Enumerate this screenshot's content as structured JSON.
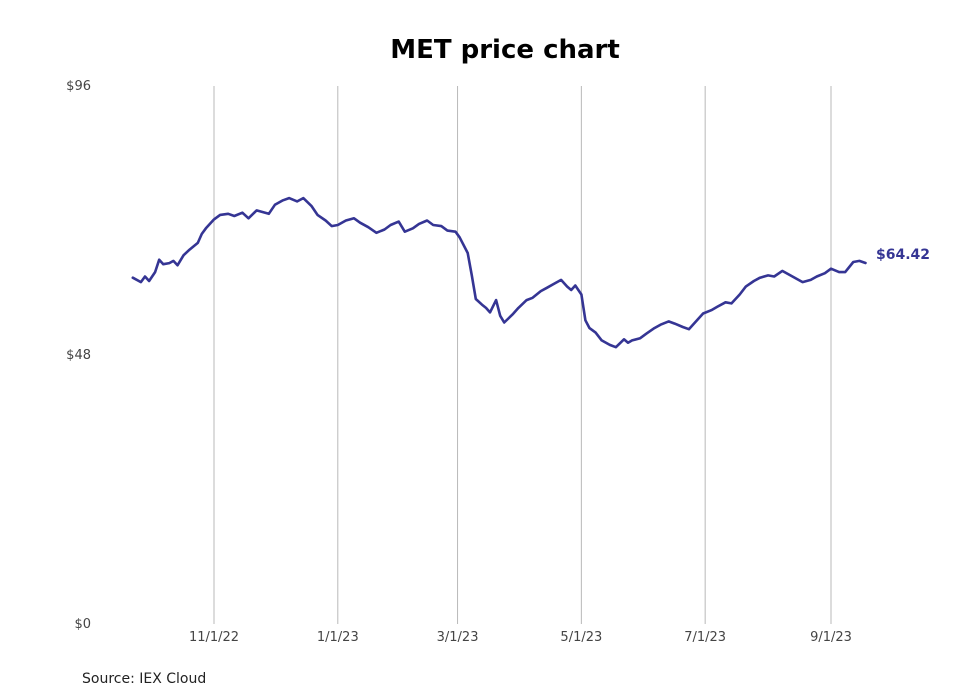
{
  "chart_data": {
    "type": "line",
    "title": "MET price chart",
    "source": "Source: IEX Cloud",
    "xlabel": "",
    "ylabel": "",
    "ylim": [
      0,
      96
    ],
    "yticks": [
      {
        "value": 0,
        "label": "$0"
      },
      {
        "value": 48,
        "label": "$48"
      },
      {
        "value": 96,
        "label": "$96"
      }
    ],
    "xlim": [
      "2022-09-02",
      "2023-10-12"
    ],
    "xticks": [
      {
        "date": "2022-11-01",
        "label": "11/1/22"
      },
      {
        "date": "2023-01-01",
        "label": "1/1/23"
      },
      {
        "date": "2023-03-01",
        "label": "3/1/23"
      },
      {
        "date": "2023-05-01",
        "label": "5/1/23"
      },
      {
        "date": "2023-07-01",
        "label": "7/1/23"
      },
      {
        "date": "2023-09-01",
        "label": "9/1/23"
      }
    ],
    "grid": "vertical",
    "line_color": "#353594",
    "last_value_label": "$64.42",
    "series": [
      {
        "points": [
          [
            "2022-09-22",
            61.8
          ],
          [
            "2022-09-26",
            61.0
          ],
          [
            "2022-09-28",
            62.0
          ],
          [
            "2022-09-30",
            61.2
          ],
          [
            "2022-10-03",
            62.8
          ],
          [
            "2022-10-05",
            65.0
          ],
          [
            "2022-10-07",
            64.2
          ],
          [
            "2022-10-10",
            64.4
          ],
          [
            "2022-10-12",
            64.8
          ],
          [
            "2022-10-14",
            64.0
          ],
          [
            "2022-10-17",
            65.8
          ],
          [
            "2022-10-20",
            66.8
          ],
          [
            "2022-10-24",
            68.0
          ],
          [
            "2022-10-26",
            69.6
          ],
          [
            "2022-10-28",
            70.6
          ],
          [
            "2022-11-01",
            72.2
          ],
          [
            "2022-11-04",
            73.0
          ],
          [
            "2022-11-08",
            73.2
          ],
          [
            "2022-11-11",
            72.8
          ],
          [
            "2022-11-15",
            73.4
          ],
          [
            "2022-11-18",
            72.4
          ],
          [
            "2022-11-22",
            73.8
          ],
          [
            "2022-11-28",
            73.2
          ],
          [
            "2022-12-01",
            74.8
          ],
          [
            "2022-12-05",
            75.6
          ],
          [
            "2022-12-08",
            76.0
          ],
          [
            "2022-12-12",
            75.4
          ],
          [
            "2022-12-15",
            76.0
          ],
          [
            "2022-12-19",
            74.6
          ],
          [
            "2022-12-22",
            73.0
          ],
          [
            "2022-12-26",
            72.0
          ],
          [
            "2022-12-29",
            71.0
          ],
          [
            "2023-01-01",
            71.2
          ],
          [
            "2023-01-05",
            72.0
          ],
          [
            "2023-01-09",
            72.4
          ],
          [
            "2023-01-12",
            71.6
          ],
          [
            "2023-01-16",
            70.8
          ],
          [
            "2023-01-20",
            69.8
          ],
          [
            "2023-01-24",
            70.4
          ],
          [
            "2023-01-27",
            71.2
          ],
          [
            "2023-01-31",
            71.8
          ],
          [
            "2023-02-03",
            70.0
          ],
          [
            "2023-02-07",
            70.6
          ],
          [
            "2023-02-10",
            71.4
          ],
          [
            "2023-02-14",
            72.0
          ],
          [
            "2023-02-17",
            71.2
          ],
          [
            "2023-02-21",
            71.0
          ],
          [
            "2023-02-24",
            70.2
          ],
          [
            "2023-02-28",
            70.0
          ],
          [
            "2023-03-02",
            69.0
          ],
          [
            "2023-03-06",
            66.2
          ],
          [
            "2023-03-08",
            62.2
          ],
          [
            "2023-03-10",
            58.0
          ],
          [
            "2023-03-13",
            57.0
          ],
          [
            "2023-03-15",
            56.4
          ],
          [
            "2023-03-17",
            55.6
          ],
          [
            "2023-03-20",
            57.8
          ],
          [
            "2023-03-22",
            55.0
          ],
          [
            "2023-03-24",
            53.8
          ],
          [
            "2023-03-28",
            55.2
          ],
          [
            "2023-03-31",
            56.4
          ],
          [
            "2023-04-04",
            57.8
          ],
          [
            "2023-04-07",
            58.2
          ],
          [
            "2023-04-11",
            59.4
          ],
          [
            "2023-04-14",
            60.0
          ],
          [
            "2023-04-18",
            60.8
          ],
          [
            "2023-04-21",
            61.4
          ],
          [
            "2023-04-24",
            60.2
          ],
          [
            "2023-04-26",
            59.6
          ],
          [
            "2023-04-28",
            60.4
          ],
          [
            "2023-05-01",
            58.8
          ],
          [
            "2023-05-03",
            54.2
          ],
          [
            "2023-05-05",
            52.8
          ],
          [
            "2023-05-08",
            52.0
          ],
          [
            "2023-05-11",
            50.6
          ],
          [
            "2023-05-15",
            49.8
          ],
          [
            "2023-05-18",
            49.4
          ],
          [
            "2023-05-22",
            50.8
          ],
          [
            "2023-05-24",
            50.2
          ],
          [
            "2023-05-26",
            50.6
          ],
          [
            "2023-05-30",
            51.0
          ],
          [
            "2023-06-02",
            51.8
          ],
          [
            "2023-06-06",
            52.8
          ],
          [
            "2023-06-09",
            53.4
          ],
          [
            "2023-06-13",
            54.0
          ],
          [
            "2023-06-16",
            53.6
          ],
          [
            "2023-06-20",
            53.0
          ],
          [
            "2023-06-23",
            52.6
          ],
          [
            "2023-06-27",
            54.2
          ],
          [
            "2023-06-30",
            55.4
          ],
          [
            "2023-07-04",
            56.0
          ],
          [
            "2023-07-07",
            56.6
          ],
          [
            "2023-07-11",
            57.4
          ],
          [
            "2023-07-14",
            57.2
          ],
          [
            "2023-07-18",
            58.8
          ],
          [
            "2023-07-21",
            60.2
          ],
          [
            "2023-07-25",
            61.2
          ],
          [
            "2023-07-28",
            61.8
          ],
          [
            "2023-08-01",
            62.2
          ],
          [
            "2023-08-04",
            62.0
          ],
          [
            "2023-08-08",
            63.0
          ],
          [
            "2023-08-11",
            62.4
          ],
          [
            "2023-08-15",
            61.6
          ],
          [
            "2023-08-18",
            61.0
          ],
          [
            "2023-08-22",
            61.4
          ],
          [
            "2023-08-25",
            62.0
          ],
          [
            "2023-08-29",
            62.6
          ],
          [
            "2023-09-01",
            63.4
          ],
          [
            "2023-09-05",
            62.8
          ],
          [
            "2023-09-08",
            62.8
          ],
          [
            "2023-09-12",
            64.6
          ],
          [
            "2023-09-15",
            64.8
          ],
          [
            "2023-09-18",
            64.42
          ]
        ]
      }
    ]
  }
}
